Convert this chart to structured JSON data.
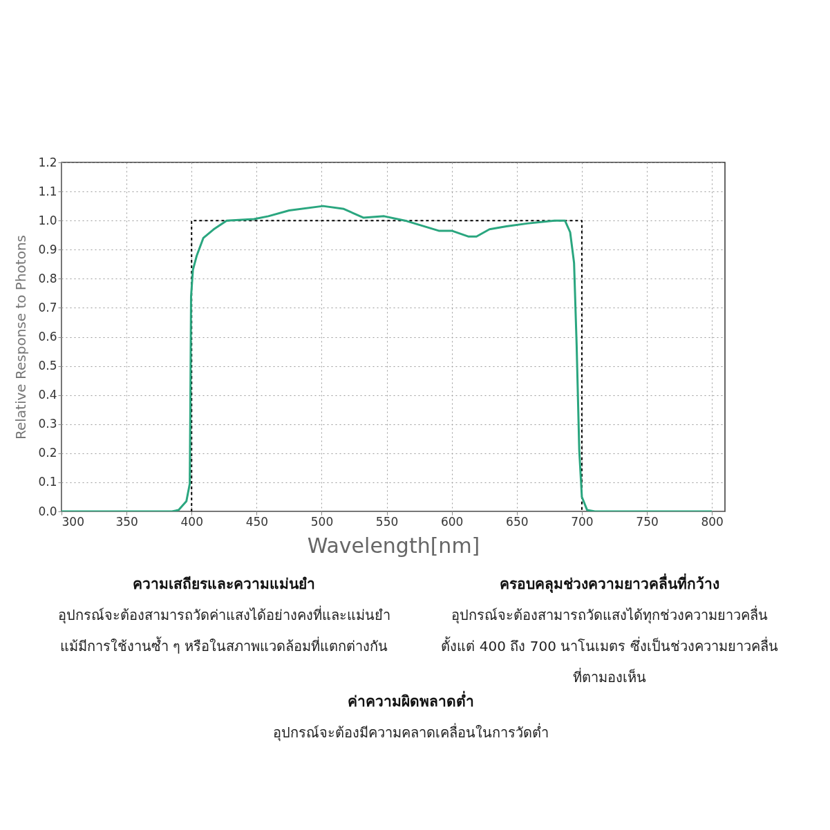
{
  "chart_data": {
    "type": "line",
    "xlabel": "Wavelength[nm]",
    "ylabel": "Relative Response to Photons",
    "xlim": [
      300,
      810
    ],
    "xticks": [
      300,
      350,
      400,
      450,
      500,
      550,
      600,
      650,
      700,
      750,
      800
    ],
    "ylim": [
      0,
      1.2
    ],
    "yticks": [
      {
        "value": 0,
        "label": "0.0"
      },
      {
        "value": 0.1,
        "label": "0.1"
      },
      {
        "value": 0.2,
        "label": "0.2"
      },
      {
        "value": 0.3,
        "label": "0.3"
      },
      {
        "value": 0.4,
        "label": "0.4"
      },
      {
        "value": 0.5,
        "label": "0.5"
      },
      {
        "value": 0.6,
        "label": "0.6"
      },
      {
        "value": 0.7,
        "label": "0.7"
      },
      {
        "value": 0.8,
        "label": "0.8"
      },
      {
        "value": 0.9,
        "label": "0.9"
      },
      {
        "value": 1.0,
        "label": "1.0"
      },
      {
        "value": 1.1,
        "label": "1.1"
      },
      {
        "value": 1.2,
        "label": "1.2"
      }
    ],
    "grid": true,
    "legend": false,
    "series": [
      {
        "line_style": "dashed",
        "color": "#000000",
        "x": [
          400,
          400,
          700,
          700
        ],
        "values": [
          0,
          1.0,
          1.0,
          0
        ]
      },
      {
        "line_style": "solid",
        "color": "#2aa67f",
        "x": [
          300,
          385,
          390,
          396,
          398.6,
          399,
          399.6,
          401,
          404,
          409,
          417,
          427,
          448,
          459,
          475,
          501,
          517,
          532,
          548,
          564,
          579,
          590,
          600,
          613,
          619,
          629,
          642,
          658,
          679,
          687,
          691,
          694,
          696,
          698,
          700,
          704,
          710,
          800
        ],
        "values": [
          0,
          0,
          0.005,
          0.035,
          0.095,
          0.33,
          0.74,
          0.83,
          0.88,
          0.94,
          0.97,
          1.0,
          1.005,
          1.015,
          1.035,
          1.05,
          1.04,
          1.01,
          1.015,
          1.0,
          0.98,
          0.965,
          0.965,
          0.945,
          0.945,
          0.97,
          0.98,
          0.99,
          1.0,
          1.0,
          0.96,
          0.855,
          0.57,
          0.21,
          0.05,
          0.005,
          0,
          0
        ]
      }
    ],
    "annotations": [
      "ความเสถียรและความแม่นยำ",
      "อุปกรณ์จะต้องสามารถวัดค่าแสงได้อย่างคงที่และแม่นยำ",
      "แม้มีการใช้งานซ้ำ ๆ หรือในสภาพแวดล้อมที่แตกต่างกัน",
      "ครอบคลุมช่วงความยาวคลื่นที่กว้าง",
      "อุปกรณ์จะต้องสามารถวัดแสงได้ทุกช่วงความยาวคลื่น",
      "ตั้งแต่ 400 ถึง 700 นาโนเมตร ซึ่งเป็นช่วงความยาวคลื่น",
      "ที่ตามองเห็น",
      "ค่าความผิดพลาดต่ำ",
      "อุปกรณ์จะต้องมีความคลาดเคลื่อนในการวัดต่ำ"
    ]
  }
}
